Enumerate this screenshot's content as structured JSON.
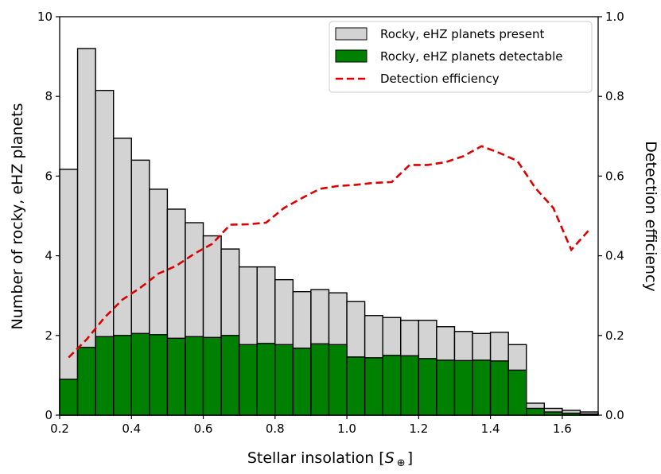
{
  "chart_data": {
    "type": "bar",
    "bin_edges": [
      0.2,
      0.25,
      0.3,
      0.35,
      0.4,
      0.45,
      0.5,
      0.55,
      0.6,
      0.65,
      0.7,
      0.75,
      0.8,
      0.85,
      0.9,
      0.95,
      1.0,
      1.05,
      1.1,
      1.15,
      1.2,
      1.25,
      1.3,
      1.35,
      1.4,
      1.45,
      1.5,
      1.55,
      1.6,
      1.65,
      1.7
    ],
    "series": [
      {
        "name": "Rocky, eHZ planets present",
        "kind": "histogram",
        "axis": "left",
        "color": "#d3d3d3",
        "edgecolor": "#000000",
        "values": [
          6.17,
          9.2,
          8.15,
          6.95,
          6.4,
          5.67,
          5.17,
          4.83,
          4.5,
          4.17,
          3.72,
          3.72,
          3.4,
          3.1,
          3.15,
          3.07,
          2.85,
          2.5,
          2.45,
          2.38,
          2.38,
          2.22,
          2.1,
          2.05,
          2.08,
          1.77,
          0.3,
          0.17,
          0.12,
          0.08
        ]
      },
      {
        "name": "Rocky, eHZ planets detectable",
        "kind": "histogram",
        "axis": "left",
        "color": "#008000",
        "edgecolor": "#000000",
        "values": [
          0.9,
          1.7,
          1.97,
          2.0,
          2.05,
          2.02,
          1.93,
          1.97,
          1.95,
          2.0,
          1.77,
          1.8,
          1.77,
          1.68,
          1.79,
          1.77,
          1.46,
          1.44,
          1.5,
          1.49,
          1.42,
          1.38,
          1.37,
          1.38,
          1.36,
          1.13,
          0.17,
          0.08,
          0.05,
          0.03
        ]
      },
      {
        "name": "Detection efficiency",
        "kind": "line",
        "style": "dashed",
        "axis": "right",
        "color": "#dd0000",
        "x": [
          0.225,
          0.275,
          0.325,
          0.375,
          0.425,
          0.475,
          0.525,
          0.575,
          0.625,
          0.675,
          0.725,
          0.775,
          0.825,
          0.875,
          0.925,
          0.975,
          1.025,
          1.075,
          1.125,
          1.175,
          1.225,
          1.275,
          1.325,
          1.375,
          1.425,
          1.475,
          1.525,
          1.575,
          1.625,
          1.675
        ],
        "y": [
          0.145,
          0.19,
          0.245,
          0.29,
          0.32,
          0.355,
          0.375,
          0.405,
          0.43,
          0.478,
          0.479,
          0.483,
          0.52,
          0.545,
          0.568,
          0.575,
          0.578,
          0.583,
          0.585,
          0.628,
          0.628,
          0.635,
          0.65,
          0.675,
          0.658,
          0.638,
          0.57,
          0.52,
          0.415,
          0.465
        ]
      }
    ],
    "xlabel_main": "Stellar insolation [",
    "xlabel_symbol": "S",
    "xlabel_sub": "⊕",
    "xlabel_close": "]",
    "ylabel": "Number of rocky, eHZ planets",
    "y2label": "Detection efficiency",
    "xlim": [
      0.2,
      1.7
    ],
    "ylim": [
      0,
      10
    ],
    "y2lim": [
      0,
      1.0
    ],
    "xticks": [
      "0.2",
      "0.4",
      "0.6",
      "0.8",
      "1.0",
      "1.2",
      "1.4",
      "1.6"
    ],
    "yticks": [
      "0",
      "2",
      "4",
      "6",
      "8",
      "10"
    ],
    "y2ticks": [
      "0.0",
      "0.2",
      "0.4",
      "0.6",
      "0.8",
      "1.0"
    ],
    "legend_position": "top-right",
    "grid": false
  }
}
